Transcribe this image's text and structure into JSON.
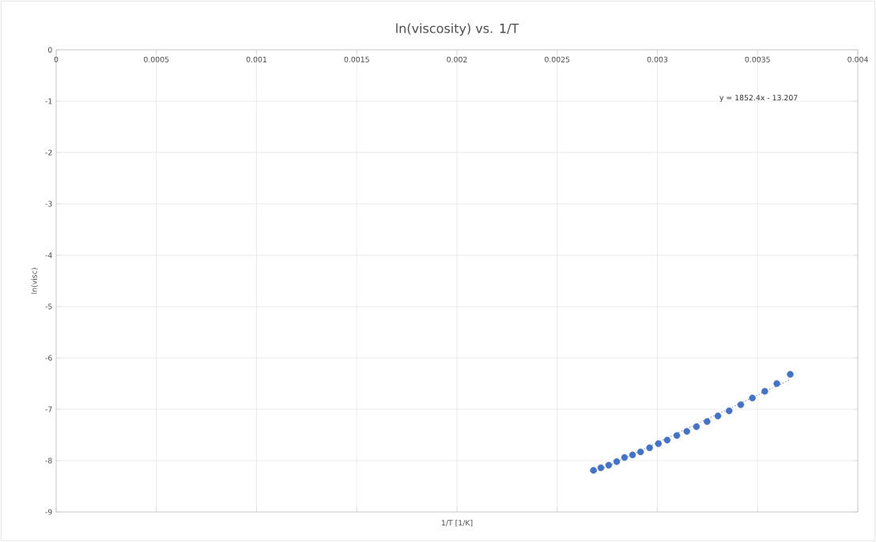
{
  "chart_data": {
    "type": "scatter",
    "title": "ln(viscosity) vs. 1/T",
    "xlabel": "1/T  [1/K]",
    "ylabel": "ln(visc)",
    "annotations": [
      "y = 1852.4x - 13.207"
    ],
    "xlim": [
      0,
      0.004
    ],
    "ylim": [
      -9,
      0
    ],
    "xticks": [
      0,
      0.0005,
      0.001,
      0.0015,
      0.002,
      0.0025,
      0.003,
      0.0035,
      0.004
    ],
    "yticks": [
      -9,
      -8,
      -7,
      -6,
      -5,
      -4,
      -3,
      -2,
      -1,
      0
    ],
    "grid": true,
    "marker": "circle",
    "series": [
      {
        "color": "#4472c4",
        "x": [
          0.002681,
          0.002718,
          0.002757,
          0.002797,
          0.002836,
          0.002876,
          0.002916,
          0.002961,
          0.003005,
          0.003049,
          0.003097,
          0.003147,
          0.003195,
          0.003248,
          0.003302,
          0.003358,
          0.003416,
          0.003474,
          0.003536,
          0.003596,
          0.003663
        ],
        "values": [
          -8.19,
          -8.14,
          -8.09,
          -8.02,
          -7.94,
          -7.89,
          -7.83,
          -7.75,
          -7.67,
          -7.6,
          -7.51,
          -7.43,
          -7.34,
          -7.24,
          -7.13,
          -7.03,
          -6.91,
          -6.78,
          -6.65,
          -6.5,
          -6.32
        ]
      },
      {
        "type": "line",
        "color": "#4472c4",
        "line_style": "dotted",
        "marker": "none",
        "x": [
          0.002681,
          0.003663
        ],
        "values": [
          -8.241,
          -6.422
        ]
      }
    ]
  }
}
